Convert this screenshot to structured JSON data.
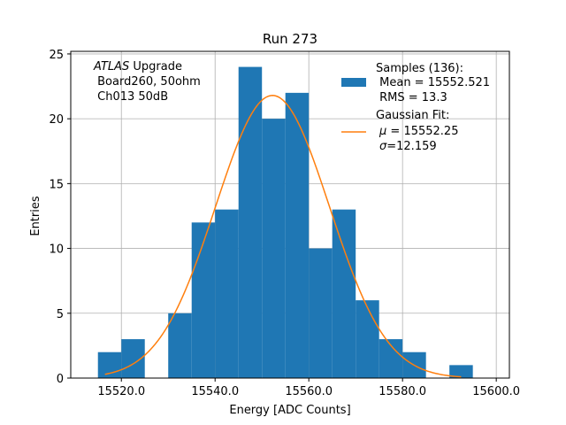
{
  "chart_data": {
    "type": "bar",
    "title": "Run 273",
    "xlabel": "Energy [ADC Counts]",
    "ylabel": "Entries",
    "xlim": [
      15509.2,
      15602.8
    ],
    "ylim": [
      0,
      25.2
    ],
    "xticks": [
      15520.0,
      15540.0,
      15560.0,
      15580.0,
      15600.0
    ],
    "xtick_labels": [
      "15520.0",
      "15540.0",
      "15560.0",
      "15580.0",
      "15600.0"
    ],
    "yticks": [
      0,
      5,
      10,
      15,
      20,
      25
    ],
    "ytick_labels": [
      "0",
      "5",
      "10",
      "15",
      "20",
      "25"
    ],
    "grid": true,
    "bin_width": 5,
    "bins": [
      {
        "x0": 15515,
        "value": 2
      },
      {
        "x0": 15520,
        "value": 3
      },
      {
        "x0": 15530,
        "value": 5
      },
      {
        "x0": 15535,
        "value": 12
      },
      {
        "x0": 15540,
        "value": 13
      },
      {
        "x0": 15545,
        "value": 24
      },
      {
        "x0": 15550,
        "value": 20
      },
      {
        "x0": 15555,
        "value": 22
      },
      {
        "x0": 15560,
        "value": 10
      },
      {
        "x0": 15565,
        "value": 13
      },
      {
        "x0": 15570,
        "value": 6
      },
      {
        "x0": 15575,
        "value": 3
      },
      {
        "x0": 15580,
        "value": 2
      },
      {
        "x0": 15590,
        "value": 1
      }
    ],
    "fit": {
      "mu": 15552.25,
      "sigma": 12.159,
      "amplitude": 21.8,
      "x_range": [
        15516.5,
        15592.5
      ]
    },
    "colors": {
      "bars": "#1f77b4",
      "fit_line": "#ff7f0e",
      "grid": "#b0b0b0",
      "axes": "#000000"
    },
    "annotation": {
      "lines": [
        {
          "italic": "ATLAS",
          "rest": " Upgrade"
        },
        {
          "italic": "",
          "rest": " Board260, 50ohm"
        },
        {
          "italic": "",
          "rest": " Ch013 50dB"
        }
      ]
    },
    "legend": {
      "placement": "top-right",
      "samples": {
        "line1": "Samples (136):",
        "line2": " Mean = 15552.521",
        "line3": " RMS = 13.3"
      },
      "fit": {
        "line1": "Gaussian Fit:",
        "line2_sym": "μ",
        "line2_rest": " = 15552.25",
        "line3_sym": "σ",
        "line3_rest": "=12.159"
      }
    }
  }
}
